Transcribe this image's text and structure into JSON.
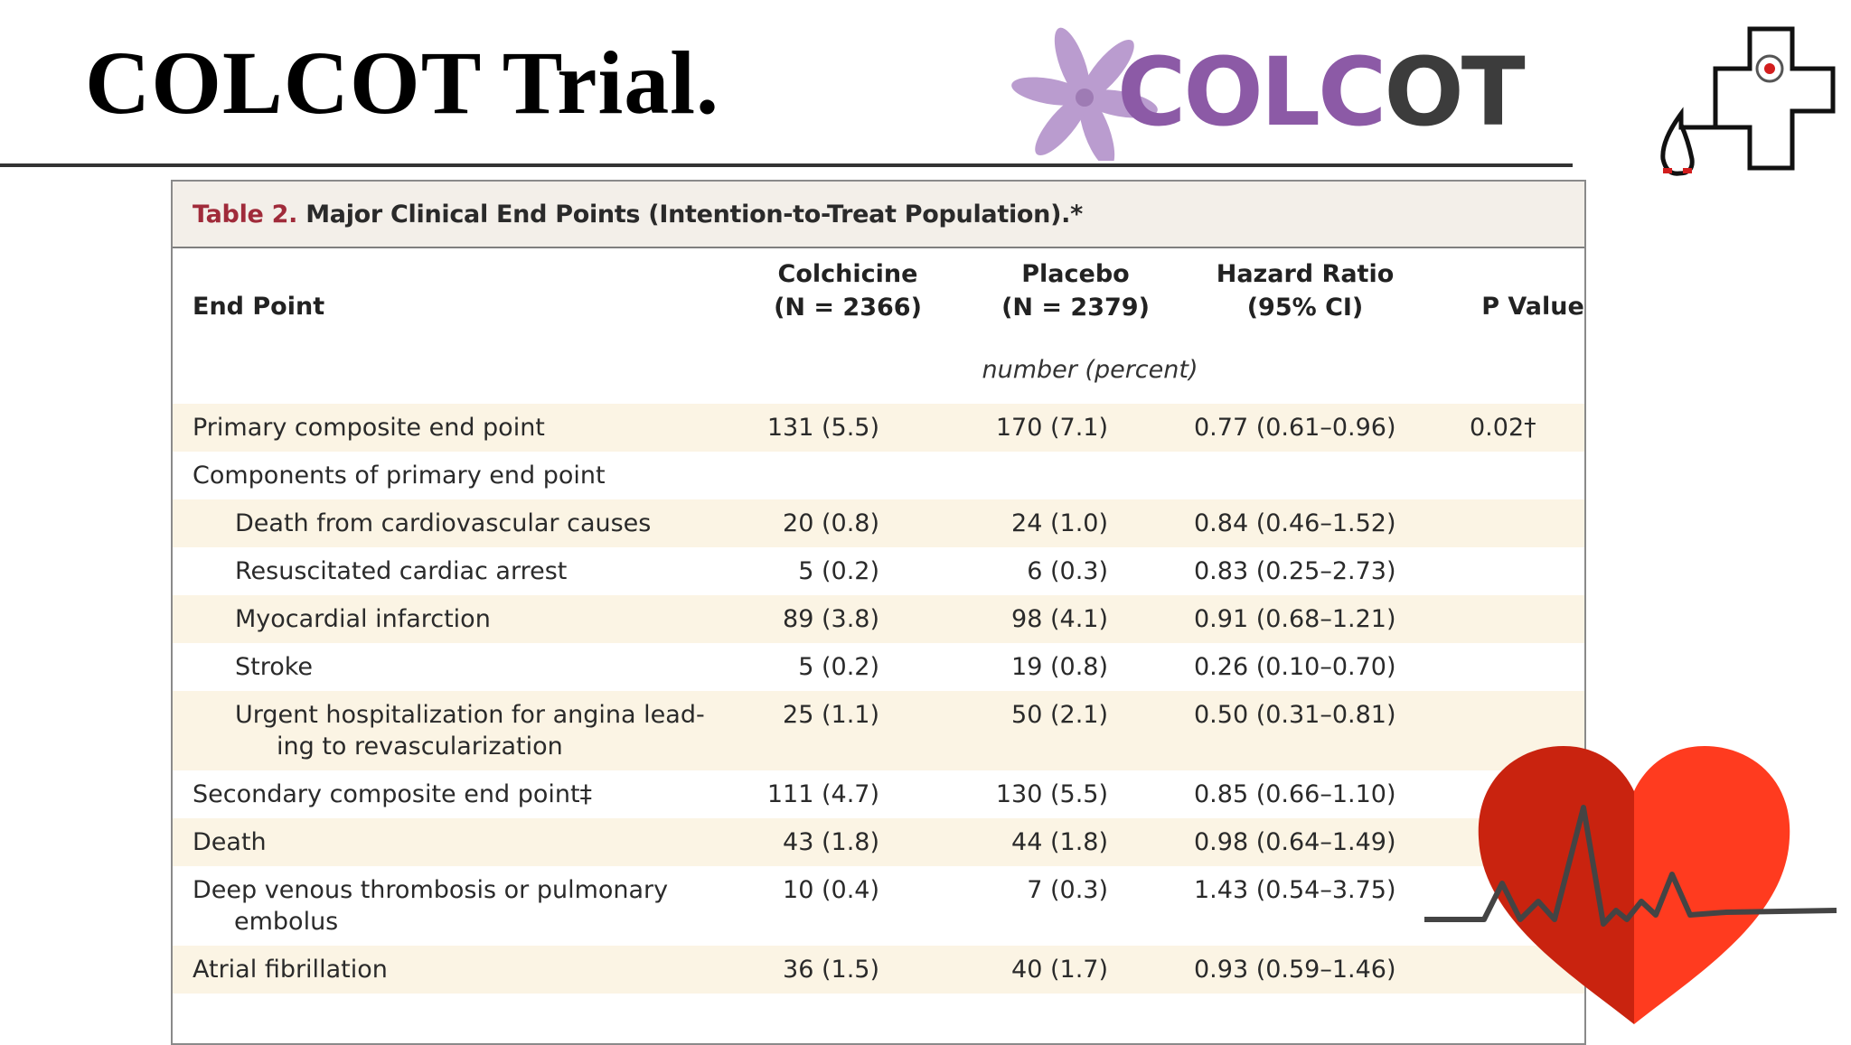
{
  "slide": {
    "title": "COLCOT Trial."
  },
  "logo": {
    "text_part1": "COLC",
    "text_part2": "OT"
  },
  "table": {
    "caption_label": "Table 2.",
    "caption_text": "Major Clinical End Points (Intention-to-Treat Population).*",
    "headers": {
      "endpoint": "End Point",
      "colchicine": [
        "Colchicine",
        "(N = 2366)"
      ],
      "placebo": [
        "Placebo",
        "(N = 2379)"
      ],
      "hazard_ratio": [
        "Hazard Ratio",
        "(95% CI)"
      ],
      "p_value": "P Value"
    },
    "units_note": "number (percent)",
    "rows": [
      {
        "name": [
          "Primary composite end point"
        ],
        "colchicine": "131 (5.5)",
        "placebo": "170 (7.1)",
        "hr": "0.77 (0.61–0.96)",
        "p": "0.02†",
        "shaded": true,
        "indent": false
      },
      {
        "name": [
          "Components of primary end point"
        ],
        "colchicine": "",
        "placebo": "",
        "hr": "",
        "p": "",
        "shaded": false,
        "indent": false
      },
      {
        "name": [
          "Death from cardiovascular causes"
        ],
        "colchicine": "20 (0.8)",
        "placebo": "24 (1.0)",
        "hr": "0.84 (0.46–1.52)",
        "p": "",
        "shaded": true,
        "indent": true
      },
      {
        "name": [
          "Resuscitated cardiac arrest"
        ],
        "colchicine": "5 (0.2)",
        "placebo": "6 (0.3)",
        "hr": "0.83 (0.25–2.73)",
        "p": "",
        "shaded": false,
        "indent": true
      },
      {
        "name": [
          "Myocardial infarction"
        ],
        "colchicine": "89 (3.8)",
        "placebo": "98 (4.1)",
        "hr": "0.91 (0.68–1.21)",
        "p": "",
        "shaded": true,
        "indent": true
      },
      {
        "name": [
          "Stroke"
        ],
        "colchicine": "5 (0.2)",
        "placebo": "19 (0.8)",
        "hr": "0.26 (0.10–0.70)",
        "p": "",
        "shaded": false,
        "indent": true
      },
      {
        "name": [
          "Urgent hospitalization for angina lead-",
          "ing to revascularization"
        ],
        "colchicine": "25 (1.1)",
        "placebo": "50 (2.1)",
        "hr": "0.50 (0.31–0.81)",
        "p": "",
        "shaded": true,
        "indent": true
      },
      {
        "name": [
          "Secondary composite end point‡"
        ],
        "colchicine": "111 (4.7)",
        "placebo": "130 (5.5)",
        "hr": "0.85 (0.66–1.10)",
        "p": "",
        "shaded": false,
        "indent": false
      },
      {
        "name": [
          "Death"
        ],
        "colchicine": "43 (1.8)",
        "placebo": "44 (1.8)",
        "hr": "0.98 (0.64–1.49)",
        "p": "",
        "shaded": true,
        "indent": false
      },
      {
        "name": [
          "Deep venous thrombosis or pulmonary",
          "embolus"
        ],
        "colchicine": "10 (0.4)",
        "placebo": "7 (0.3)",
        "hr": "1.43 (0.54–3.75)",
        "p": "",
        "shaded": false,
        "indent": false
      },
      {
        "name": [
          "Atrial fibrillation"
        ],
        "colchicine": "36 (1.5)",
        "placebo": "40 (1.7)",
        "hr": "0.93 (0.59–1.46)",
        "p": "",
        "shaded": true,
        "indent": false
      }
    ]
  },
  "colors": {
    "accent_purple": "#8c5aa6",
    "caption_red": "#a02b3a",
    "row_shade": "#fbf4e4",
    "heart_red": "#e8321e"
  },
  "icons": [
    "flower-icon",
    "stethoscope-cross-icon",
    "heart-ecg-icon"
  ]
}
